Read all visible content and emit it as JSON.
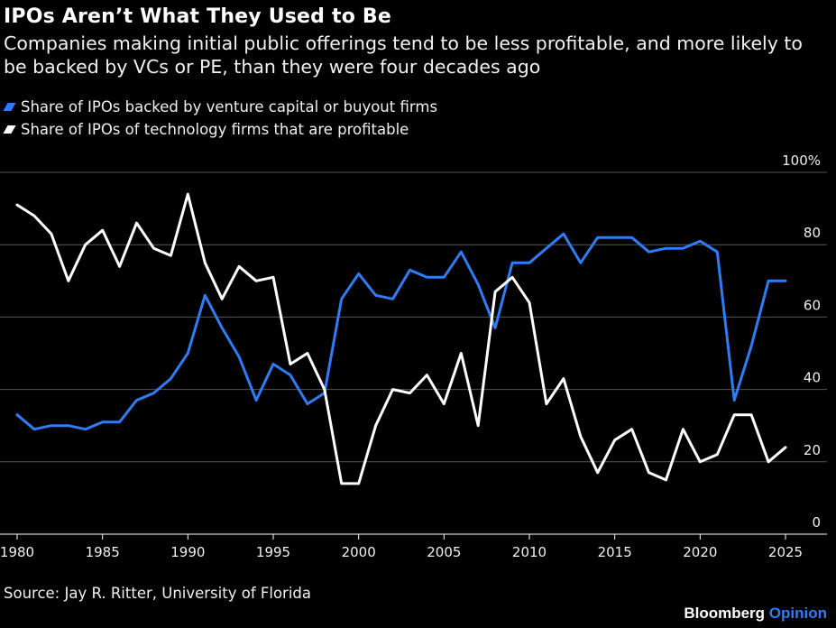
{
  "title": "IPOs Aren’t What They Used to Be",
  "subtitle": "Companies making initial public offerings tend to be less profitable, and more likely to be backed by VCs or PE, than they were four decades ago",
  "source": "Source: Jay R. Ritter, University of Florida",
  "brand": {
    "name": "Bloomberg",
    "accent": "Opinion"
  },
  "colors": {
    "vc_series": "#2f7cf6",
    "profit_series": "#ffffff",
    "background": "#000000",
    "grid": "#555555"
  },
  "chart_data": {
    "type": "line",
    "title": "IPOs Aren’t What They Used to Be",
    "ylim": [
      0,
      100
    ],
    "xlim": [
      1980,
      2025
    ],
    "y_ticks": [
      0,
      20,
      40,
      60,
      80,
      100
    ],
    "y_tick_labels": [
      "0",
      "20",
      "40",
      "60",
      "80",
      "100%"
    ],
    "x_ticks": [
      1980,
      1985,
      1990,
      1995,
      2000,
      2005,
      2010,
      2015,
      2020,
      2025
    ],
    "x_tick_labels": [
      "1980",
      "1985",
      "1990",
      "1995",
      "2000",
      "2005",
      "2010",
      "2015",
      "2020",
      "2025"
    ],
    "grid": "horizontal",
    "legend_position": "top-left",
    "x": [
      1980,
      1981,
      1982,
      1983,
      1984,
      1985,
      1986,
      1987,
      1988,
      1989,
      1990,
      1991,
      1992,
      1993,
      1994,
      1995,
      1996,
      1997,
      1998,
      1999,
      2000,
      2001,
      2002,
      2003,
      2004,
      2005,
      2006,
      2007,
      2008,
      2009,
      2010,
      2011,
      2012,
      2013,
      2014,
      2015,
      2016,
      2017,
      2018,
      2019,
      2020,
      2021,
      2022,
      2023,
      2024,
      2025
    ],
    "series": [
      {
        "name": "Share of IPOs backed by venture capital or buyout firms",
        "color": "#2f7cf6",
        "values": [
          33,
          29,
          30,
          30,
          29,
          31,
          31,
          37,
          39,
          43,
          50,
          66,
          57,
          49,
          37,
          47,
          44,
          36,
          39,
          65,
          72,
          66,
          65,
          73,
          71,
          71,
          78,
          69,
          57,
          75,
          75,
          79,
          83,
          75,
          82,
          82,
          82,
          78,
          79,
          79,
          81,
          78,
          37,
          52,
          70,
          70
        ]
      },
      {
        "name": "Share of IPOs of technology firms that are profitable",
        "color": "#ffffff",
        "values": [
          91,
          88,
          83,
          70,
          80,
          84,
          74,
          86,
          79,
          77,
          94,
          75,
          65,
          74,
          70,
          71,
          47,
          50,
          40,
          14,
          14,
          30,
          40,
          39,
          44,
          36,
          50,
          30,
          67,
          71,
          64,
          36,
          43,
          27,
          17,
          26,
          29,
          17,
          15,
          29,
          20,
          22,
          33,
          33,
          20,
          24
        ]
      }
    ]
  }
}
